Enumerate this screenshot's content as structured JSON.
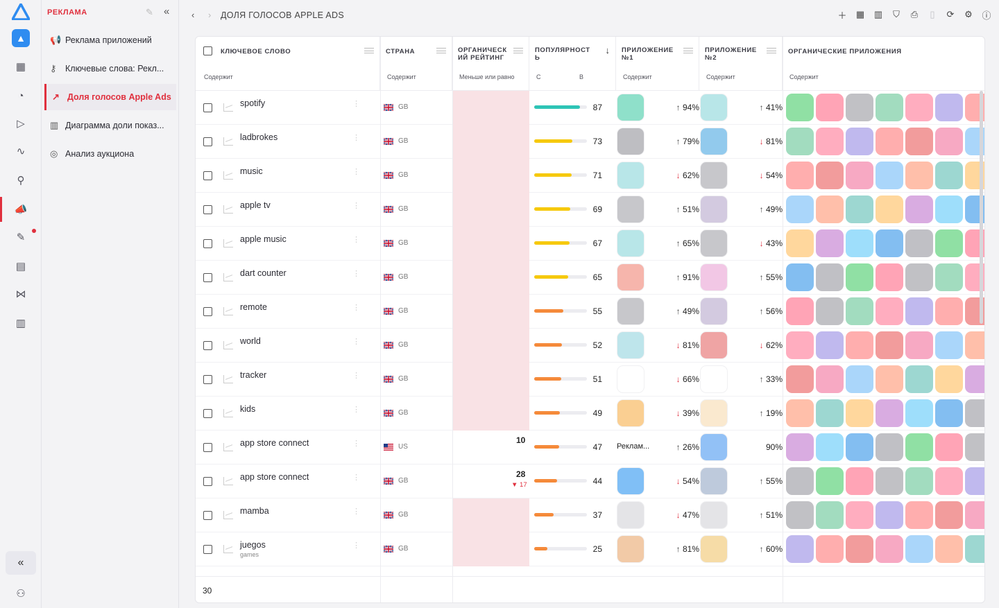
{
  "sidebar_rail": {
    "icons": [
      "logo-icon",
      "app-icon",
      "grid-icon",
      "apple-icon",
      "play-icon",
      "trend-icon",
      "tool-icon",
      "megaphone-icon",
      "wrench-icon",
      "chart-icon",
      "vs-icon",
      "store-icon",
      "collapse-icon",
      "user-icon"
    ]
  },
  "nav": {
    "section": "РЕКЛАМА",
    "items": [
      {
        "label": "Реклама приложений"
      },
      {
        "label": "Ключевые слова: Рекл..."
      },
      {
        "label": "Доля голосов Apple Ads"
      },
      {
        "label": "Диаграмма доли показ..."
      },
      {
        "label": "Анализ аукциона"
      }
    ]
  },
  "topbar": {
    "title": "ДОЛЯ ГОЛОСОВ APPLE ADS"
  },
  "table": {
    "columns": {
      "keyword": {
        "title": "КЛЮЧЕВОЕ СЛОВО",
        "filter": "Содержит"
      },
      "country": {
        "title": "СТРАНА",
        "filter": "Содержит"
      },
      "organic": {
        "title": "ОРГАНИЧЕСК ИЙ РЕЙТИНГ",
        "filter": "Меньше или равно"
      },
      "popularity": {
        "title": "ПОПУЛЯРНОСТ Ь",
        "filter_from": "С",
        "filter_to": "В"
      },
      "app1": {
        "title": "ПРИЛОЖЕНИЕ №1",
        "filter": "Содержит"
      },
      "app2": {
        "title": "ПРИЛОЖЕНИЕ №2",
        "filter": "Содержит"
      },
      "organic_apps": {
        "title": "ОРГАНИЧЕСКИЕ ПРИЛОЖЕНИЯ",
        "filter": "Содержит"
      }
    },
    "rows": [
      {
        "keyword": "spotify",
        "sub": "",
        "country": "GB",
        "organic": "",
        "organic_delta": "",
        "popularity": "87",
        "pop_pct": 0.87,
        "bar_color": "#2ec4b6",
        "p1": "94%",
        "p1_dir": "up",
        "p2": "41%",
        "p2_dir": "up"
      },
      {
        "keyword": "ladbrokes",
        "sub": "",
        "country": "GB",
        "organic": "",
        "organic_delta": "",
        "popularity": "73",
        "pop_pct": 0.73,
        "bar_color": "#f6c90e",
        "p1": "79%",
        "p1_dir": "up",
        "p2": "81%",
        "p2_dir": "down"
      },
      {
        "keyword": "music",
        "sub": "",
        "country": "GB",
        "organic": "",
        "organic_delta": "",
        "popularity": "71",
        "pop_pct": 0.71,
        "bar_color": "#f6c90e",
        "p1": "62%",
        "p1_dir": "down",
        "p2": "54%",
        "p2_dir": "down"
      },
      {
        "keyword": "apple tv",
        "sub": "",
        "country": "GB",
        "organic": "",
        "organic_delta": "",
        "popularity": "69",
        "pop_pct": 0.69,
        "bar_color": "#f6c90e",
        "p1": "51%",
        "p1_dir": "up",
        "p2": "49%",
        "p2_dir": "up"
      },
      {
        "keyword": "apple music",
        "sub": "",
        "country": "GB",
        "organic": "",
        "organic_delta": "",
        "popularity": "67",
        "pop_pct": 0.67,
        "bar_color": "#f6c90e",
        "p1": "65%",
        "p1_dir": "up",
        "p2": "43%",
        "p2_dir": "down"
      },
      {
        "keyword": "dart counter",
        "sub": "",
        "country": "GB",
        "organic": "",
        "organic_delta": "",
        "popularity": "65",
        "pop_pct": 0.65,
        "bar_color": "#f6c90e",
        "p1": "91%",
        "p1_dir": "up",
        "p2": "55%",
        "p2_dir": "up"
      },
      {
        "keyword": "remote",
        "sub": "",
        "country": "GB",
        "organic": "",
        "organic_delta": "",
        "popularity": "55",
        "pop_pct": 0.55,
        "bar_color": "#f58a3a",
        "p1": "49%",
        "p1_dir": "up",
        "p2": "56%",
        "p2_dir": "up"
      },
      {
        "keyword": "world",
        "sub": "",
        "country": "GB",
        "organic": "",
        "organic_delta": "",
        "popularity": "52",
        "pop_pct": 0.52,
        "bar_color": "#f58a3a",
        "p1": "81%",
        "p1_dir": "down",
        "p2": "62%",
        "p2_dir": "down"
      },
      {
        "keyword": "tracker",
        "sub": "",
        "country": "GB",
        "organic": "",
        "organic_delta": "",
        "popularity": "51",
        "pop_pct": 0.51,
        "bar_color": "#f58a3a",
        "p1": "66%",
        "p1_dir": "down",
        "p2": "33%",
        "p2_dir": "up"
      },
      {
        "keyword": "kids",
        "sub": "",
        "country": "GB",
        "organic": "",
        "organic_delta": "",
        "popularity": "49",
        "pop_pct": 0.49,
        "bar_color": "#f58a3a",
        "p1": "39%",
        "p1_dir": "down",
        "p2": "19%",
        "p2_dir": "up"
      },
      {
        "keyword": "app store connect",
        "sub": "",
        "country": "US",
        "organic": "10",
        "organic_delta": "",
        "popularity": "47",
        "pop_pct": 0.47,
        "bar_color": "#f58a3a",
        "p1": "26%",
        "p1_dir": "up",
        "p2": "90%",
        "p2_dir": "",
        "app1_text": "Реклам..."
      },
      {
        "keyword": "app store connect",
        "sub": "",
        "country": "GB",
        "organic": "28",
        "organic_delta": "▼ 17",
        "popularity": "44",
        "pop_pct": 0.44,
        "bar_color": "#f58a3a",
        "p1": "54%",
        "p1_dir": "down",
        "p2": "55%",
        "p2_dir": "up"
      },
      {
        "keyword": "mamba",
        "sub": "",
        "country": "GB",
        "organic": "",
        "organic_delta": "",
        "popularity": "37",
        "pop_pct": 0.37,
        "bar_color": "#f58a3a",
        "p1": "47%",
        "p1_dir": "down",
        "p2": "51%",
        "p2_dir": "up"
      },
      {
        "keyword": "juegos",
        "sub": "games",
        "country": "GB",
        "organic": "",
        "organic_delta": "",
        "popularity": "25",
        "pop_pct": 0.25,
        "bar_color": "#f58a3a",
        "p1": "81%",
        "p1_dir": "up",
        "p2": "60%",
        "p2_dir": "up"
      }
    ],
    "total": "30"
  },
  "colors": {
    "accent": "#e0303e",
    "bar_high": "#2ec4b6",
    "bar_mid": "#f6c90e",
    "bar_low": "#f58a3a",
    "organic_bg": "#f9e2e5"
  }
}
